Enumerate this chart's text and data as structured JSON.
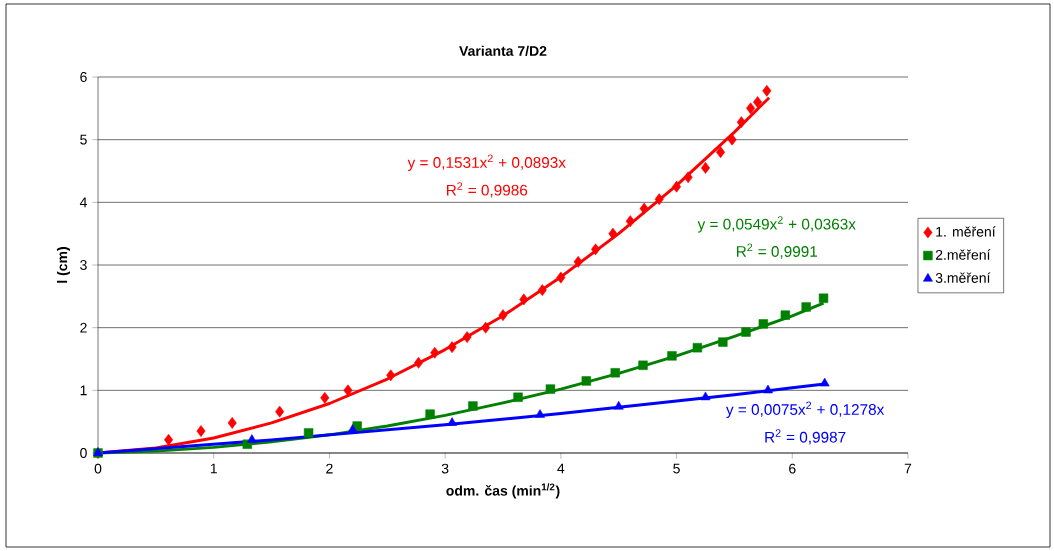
{
  "chart_data": {
    "type": "scatter",
    "title": "Varianta 7/D2",
    "xlabel": "odm. čas (min$^{1/2}$)",
    "ylabel": "l (cm)",
    "xlim": [
      0,
      7
    ],
    "xticks": [
      0,
      1,
      2,
      3,
      4,
      5,
      6,
      7
    ],
    "ylim": [
      0,
      6
    ],
    "yticks": [
      0,
      1,
      2,
      3,
      4,
      5,
      6
    ],
    "grid": "y",
    "legend": "right",
    "series": [
      {
        "name": "1. měření",
        "marker": "diamond",
        "color": "#ff0000",
        "x": [
          0,
          0.61,
          0.89,
          1.16,
          1.57,
          1.96,
          2.16,
          2.53,
          2.77,
          2.91,
          3.06,
          3.19,
          3.35,
          3.5,
          3.68,
          3.84,
          4.0,
          4.15,
          4.3,
          4.45,
          4.6,
          4.72,
          4.85,
          5.0,
          5.1,
          5.25,
          5.38,
          5.48,
          5.56,
          5.64,
          5.7,
          5.78
        ],
        "values": [
          0,
          0.21,
          0.35,
          0.48,
          0.66,
          0.88,
          1.0,
          1.24,
          1.44,
          1.6,
          1.69,
          1.85,
          2.0,
          2.2,
          2.45,
          2.6,
          2.8,
          3.05,
          3.25,
          3.5,
          3.7,
          3.9,
          4.05,
          4.25,
          4.4,
          4.55,
          4.8,
          5.0,
          5.28,
          5.5,
          5.6,
          5.78
        ]
      },
      {
        "name": "2.měření",
        "marker": "square",
        "color": "#008000",
        "x": [
          0,
          1.29,
          1.82,
          2.24,
          2.87,
          3.24,
          3.63,
          3.91,
          4.22,
          4.47,
          4.71,
          4.96,
          5.18,
          5.4,
          5.6,
          5.75,
          5.94,
          6.12,
          6.27
        ],
        "values": [
          0,
          0.14,
          0.32,
          0.43,
          0.62,
          0.75,
          0.89,
          1.02,
          1.15,
          1.28,
          1.4,
          1.55,
          1.68,
          1.77,
          1.93,
          2.06,
          2.2,
          2.33,
          2.47
        ]
      },
      {
        "name": "3.měření",
        "marker": "triangle",
        "color": "#0000ff",
        "x": [
          0,
          1.33,
          2.2,
          3.06,
          3.82,
          4.5,
          5.25,
          5.79,
          6.28
        ],
        "values": [
          0,
          0.21,
          0.37,
          0.48,
          0.61,
          0.74,
          0.89,
          1.0,
          1.11
        ]
      },
      {
        "type": "line",
        "color": "#ff0000",
        "x": [
          0,
          0.5,
          1,
          1.5,
          2,
          2.5,
          3,
          3.5,
          4,
          4.5,
          5,
          5.5,
          5.8
        ],
        "values": [
          0,
          0.08,
          0.24,
          0.48,
          0.79,
          1.18,
          1.65,
          2.19,
          2.81,
          3.5,
          4.27,
          5.12,
          5.67
        ]
      },
      {
        "type": "line",
        "color": "#008000",
        "x": [
          0,
          0.5,
          1,
          1.5,
          2,
          2.5,
          3,
          3.5,
          4,
          4.5,
          5,
          5.5,
          6,
          6.27
        ],
        "values": [
          0,
          0.03,
          0.09,
          0.18,
          0.29,
          0.43,
          0.6,
          0.8,
          1.02,
          1.27,
          1.55,
          1.86,
          2.19,
          2.39
        ]
      },
      {
        "type": "line",
        "color": "#0000ff",
        "x": [
          0,
          0.5,
          1,
          1.5,
          2,
          2.5,
          3,
          3.5,
          4,
          4.5,
          5,
          5.5,
          6,
          6.28
        ],
        "values": [
          0,
          0.07,
          0.14,
          0.21,
          0.29,
          0.37,
          0.45,
          0.54,
          0.63,
          0.73,
          0.83,
          0.93,
          1.04,
          1.1
        ]
      }
    ],
    "annotations": [
      "y = 0,1531x$^{2}$ + 0,0893x",
      "R$^{2}$ = 0,9986",
      "y = 0,0549x$^{2}$ + 0,0363x",
      "R$^{2}$ = 0,9991",
      "y = 0,0075x$^{2}$ + 0,1278x",
      "R$^{2}$ = 0,9987"
    ]
  }
}
